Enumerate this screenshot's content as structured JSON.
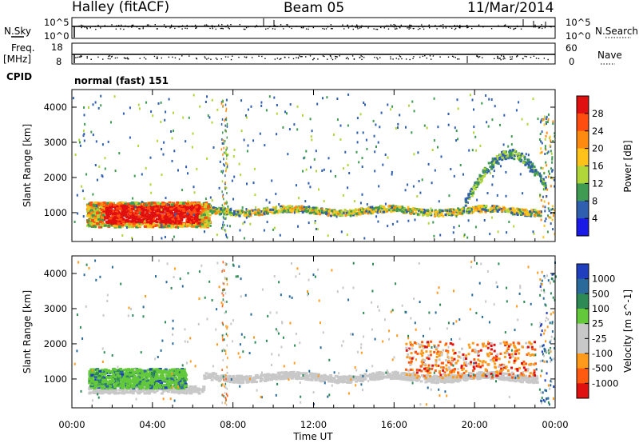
{
  "header": {
    "station": "Halley (fitACF)",
    "beam": "Beam 05",
    "date": "11/Mar/2014"
  },
  "top_panels": {
    "nsky_label": "N.Sky",
    "nsky_ticks": [
      "10^5",
      "10^0"
    ],
    "nsearch_label": "N.Search",
    "nsearch_ticks": [
      "10^5",
      "10^0"
    ],
    "freq_label": "Freq.",
    "freq_unit": "[MHz]",
    "freq_ticks": [
      "18",
      "8"
    ],
    "nave_label": "Nave",
    "nave_ticks": [
      "60",
      "0"
    ],
    "cpid_label": "CPID",
    "cpid_text": "normal (fast) 151"
  },
  "chart_data": [
    {
      "type": "heatmap",
      "panel": "power",
      "title": "",
      "xlabel": "",
      "ylabel": "Slant Range [km]",
      "x_ticks": [
        "00:00",
        "04:00",
        "08:00",
        "12:00",
        "16:00",
        "20:00",
        "00:00"
      ],
      "xlim_hours": [
        0,
        24
      ],
      "y_ticks": [
        1000,
        2000,
        3000,
        4000
      ],
      "ylim": [
        180,
        4500
      ],
      "colorbar_label": "Power [dB]",
      "colorbar_ticks": [
        "28",
        "24",
        "20",
        "16",
        "12",
        "8",
        "4"
      ],
      "colorbar_colors": [
        "#e01010",
        "#ff4d10",
        "#ff8a10",
        "#ffc21a",
        "#b0d63a",
        "#3f9a52",
        "#2f5fae",
        "#1a1ae6"
      ],
      "features": [
        {
          "name": "strong E/F echo",
          "hours": [
            0.7,
            6.8
          ],
          "range_km": [
            600,
            1350
          ],
          "power_dB": 28
        },
        {
          "name": "daytime band",
          "hours": [
            6.8,
            23.0
          ],
          "range_km": [
            950,
            1200
          ],
          "power_dB": 16
        },
        {
          "name": "evening arc",
          "hours": [
            19.5,
            23.5
          ],
          "range_km": [
            1200,
            2800
          ],
          "power_dB": 8
        }
      ]
    },
    {
      "type": "heatmap",
      "panel": "velocity",
      "title": "",
      "xlabel": "Time UT",
      "ylabel": "Slant Range [km]",
      "x_ticks": [
        "00:00",
        "04:00",
        "08:00",
        "12:00",
        "16:00",
        "20:00",
        "00:00"
      ],
      "xlim_hours": [
        0,
        24
      ],
      "y_ticks": [
        1000,
        2000,
        3000,
        4000
      ],
      "ylim": [
        180,
        4500
      ],
      "colorbar_label": "Velocity [m s^-1]",
      "colorbar_ticks": [
        "1000",
        "500",
        "100",
        "25",
        "-25",
        "-100",
        "-500",
        "-1000"
      ],
      "colorbar_colors": [
        "#1f3fbf",
        "#2a6a9a",
        "#2e8a55",
        "#63c93a",
        "#c8c8c8",
        "#c8c8c8",
        "#ff9a1a",
        "#ff5a10",
        "#e01010"
      ],
      "features": [
        {
          "name": "positive velocity patch",
          "hours": [
            0.7,
            5.5
          ],
          "range_km": [
            650,
            1350
          ],
          "velocity": 100
        },
        {
          "name": "ground scatter band",
          "hours": [
            5.5,
            23.0
          ],
          "range_km": [
            950,
            1200
          ],
          "velocity": 0
        },
        {
          "name": "negative velocity arc",
          "hours": [
            16.5,
            23.0
          ],
          "range_km": [
            1000,
            2100
          ],
          "velocity": -300
        }
      ]
    }
  ]
}
